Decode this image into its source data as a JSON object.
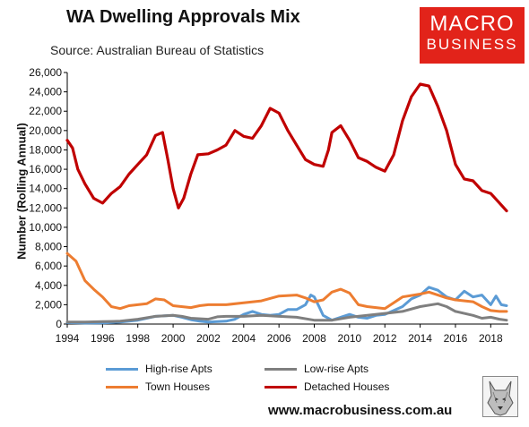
{
  "title": "WA Dwelling Approvals Mix",
  "subtitle": "Source: Australian Bureau of Statistics",
  "logo": {
    "line1": "MACRO",
    "line2": "BUSINESS"
  },
  "website": "www.macrobusiness.com.au",
  "chart_data": {
    "type": "line",
    "title": "WA Dwelling Approvals Mix",
    "ylabel": "Number (Rolling Annual)",
    "xlabel": "",
    "xlim": [
      1994,
      2019
    ],
    "ylim": [
      0,
      26000
    ],
    "x_ticks": [
      "1994",
      "1996",
      "1998",
      "2000",
      "2002",
      "2004",
      "2006",
      "2008",
      "2010",
      "2012",
      "2014",
      "2016",
      "2018"
    ],
    "y_ticks": [
      "0",
      "2,000",
      "4,000",
      "6,000",
      "8,000",
      "10,000",
      "12,000",
      "14,000",
      "16,000",
      "18,000",
      "20,000",
      "22,000",
      "24,000",
      "26,000"
    ],
    "grid": false,
    "legend_position": "bottom",
    "series": [
      {
        "name": "High-rise Apts",
        "color": "#5b9bd5",
        "points": [
          [
            1994,
            150
          ],
          [
            1995,
            100
          ],
          [
            1996,
            120
          ],
          [
            1997,
            200
          ],
          [
            1998,
            400
          ],
          [
            1999,
            800
          ],
          [
            2000,
            900
          ],
          [
            2000.5,
            700
          ],
          [
            2001,
            450
          ],
          [
            2001.5,
            300
          ],
          [
            2002,
            200
          ],
          [
            2003,
            300
          ],
          [
            2003.5,
            500
          ],
          [
            2004,
            1000
          ],
          [
            2004.5,
            1300
          ],
          [
            2005,
            1000
          ],
          [
            2005.5,
            900
          ],
          [
            2006,
            1000
          ],
          [
            2006.5,
            1500
          ],
          [
            2007,
            1500
          ],
          [
            2007.5,
            2000
          ],
          [
            2007.8,
            3000
          ],
          [
            2008,
            2800
          ],
          [
            2008.3,
            1700
          ],
          [
            2008.5,
            900
          ],
          [
            2009,
            400
          ],
          [
            2009.5,
            700
          ],
          [
            2010,
            1000
          ],
          [
            2010.5,
            700
          ],
          [
            2011,
            600
          ],
          [
            2011.5,
            900
          ],
          [
            2012,
            1000
          ],
          [
            2012.5,
            1400
          ],
          [
            2013,
            1800
          ],
          [
            2013.5,
            2600
          ],
          [
            2014,
            3000
          ],
          [
            2014.5,
            3800
          ],
          [
            2015,
            3500
          ],
          [
            2015.5,
            2800
          ],
          [
            2016,
            2500
          ],
          [
            2016.5,
            3400
          ],
          [
            2017,
            2800
          ],
          [
            2017.5,
            3000
          ],
          [
            2018,
            2000
          ],
          [
            2018.3,
            2900
          ],
          [
            2018.6,
            2000
          ],
          [
            2018.9,
            1900
          ]
        ]
      },
      {
        "name": "Low-rise Apts",
        "color": "#7f7f7f",
        "points": [
          [
            1994,
            200
          ],
          [
            1995,
            200
          ],
          [
            1996,
            250
          ],
          [
            1997,
            300
          ],
          [
            1998,
            500
          ],
          [
            1999,
            800
          ],
          [
            2000,
            900
          ],
          [
            2000.5,
            800
          ],
          [
            2001,
            600
          ],
          [
            2002,
            500
          ],
          [
            2002.5,
            750
          ],
          [
            2003,
            800
          ],
          [
            2004,
            800
          ],
          [
            2005,
            900
          ],
          [
            2006,
            800
          ],
          [
            2007,
            700
          ],
          [
            2008,
            400
          ],
          [
            2009,
            400
          ],
          [
            2010,
            700
          ],
          [
            2011,
            900
          ],
          [
            2012,
            1100
          ],
          [
            2013,
            1300
          ],
          [
            2014,
            1800
          ],
          [
            2015,
            2100
          ],
          [
            2015.5,
            1800
          ],
          [
            2016,
            1300
          ],
          [
            2017,
            900
          ],
          [
            2017.5,
            600
          ],
          [
            2018,
            700
          ],
          [
            2018.5,
            500
          ],
          [
            2018.9,
            400
          ]
        ]
      },
      {
        "name": "Town Houses",
        "color": "#ed7d31",
        "points": [
          [
            1994,
            7300
          ],
          [
            1994.5,
            6500
          ],
          [
            1995,
            4500
          ],
          [
            1995.5,
            3600
          ],
          [
            1996,
            2800
          ],
          [
            1996.5,
            1800
          ],
          [
            1997,
            1600
          ],
          [
            1997.5,
            1900
          ],
          [
            1998,
            2000
          ],
          [
            1998.5,
            2100
          ],
          [
            1999,
            2600
          ],
          [
            1999.5,
            2500
          ],
          [
            2000,
            1900
          ],
          [
            2001,
            1700
          ],
          [
            2001.5,
            1900
          ],
          [
            2002,
            2000
          ],
          [
            2003,
            2000
          ],
          [
            2004,
            2200
          ],
          [
            2005,
            2400
          ],
          [
            2006,
            2900
          ],
          [
            2007,
            3000
          ],
          [
            2007.5,
            2700
          ],
          [
            2008,
            2300
          ],
          [
            2008.5,
            2500
          ],
          [
            2009,
            3300
          ],
          [
            2009.5,
            3600
          ],
          [
            2010,
            3200
          ],
          [
            2010.5,
            2000
          ],
          [
            2011,
            1800
          ],
          [
            2012,
            1600
          ],
          [
            2012.5,
            2200
          ],
          [
            2013,
            2800
          ],
          [
            2014,
            3100
          ],
          [
            2014.5,
            3300
          ],
          [
            2015,
            3000
          ],
          [
            2015.5,
            2700
          ],
          [
            2016,
            2500
          ],
          [
            2017,
            2300
          ],
          [
            2017.5,
            1800
          ],
          [
            2018,
            1400
          ],
          [
            2018.5,
            1300
          ],
          [
            2018.9,
            1300
          ]
        ]
      },
      {
        "name": "Detached Houses",
        "color": "#c00000",
        "points": [
          [
            1994,
            19000
          ],
          [
            1994.3,
            18200
          ],
          [
            1994.6,
            16000
          ],
          [
            1995,
            14500
          ],
          [
            1995.5,
            13000
          ],
          [
            1996,
            12500
          ],
          [
            1996.5,
            13500
          ],
          [
            1997,
            14200
          ],
          [
            1997.5,
            15500
          ],
          [
            1998,
            16500
          ],
          [
            1998.5,
            17500
          ],
          [
            1999,
            19500
          ],
          [
            1999.4,
            19800
          ],
          [
            1999.7,
            17000
          ],
          [
            2000,
            14000
          ],
          [
            2000.3,
            12000
          ],
          [
            2000.6,
            13000
          ],
          [
            2001,
            15500
          ],
          [
            2001.4,
            17500
          ],
          [
            2002,
            17600
          ],
          [
            2002.5,
            18000
          ],
          [
            2003,
            18500
          ],
          [
            2003.5,
            20000
          ],
          [
            2004,
            19400
          ],
          [
            2004.5,
            19200
          ],
          [
            2005,
            20500
          ],
          [
            2005.5,
            22300
          ],
          [
            2006,
            21800
          ],
          [
            2006.5,
            20000
          ],
          [
            2007,
            18500
          ],
          [
            2007.5,
            17000
          ],
          [
            2008,
            16500
          ],
          [
            2008.5,
            16300
          ],
          [
            2008.8,
            18000
          ],
          [
            2009,
            19800
          ],
          [
            2009.5,
            20500
          ],
          [
            2010,
            19000
          ],
          [
            2010.5,
            17200
          ],
          [
            2011,
            16800
          ],
          [
            2011.5,
            16200
          ],
          [
            2012,
            15800
          ],
          [
            2012.5,
            17500
          ],
          [
            2013,
            21000
          ],
          [
            2013.5,
            23500
          ],
          [
            2014,
            24800
          ],
          [
            2014.5,
            24600
          ],
          [
            2015,
            22500
          ],
          [
            2015.5,
            20000
          ],
          [
            2016,
            16500
          ],
          [
            2016.5,
            15000
          ],
          [
            2017,
            14800
          ],
          [
            2017.5,
            13800
          ],
          [
            2018,
            13500
          ],
          [
            2018.5,
            12500
          ],
          [
            2018.9,
            11700
          ]
        ]
      }
    ]
  }
}
